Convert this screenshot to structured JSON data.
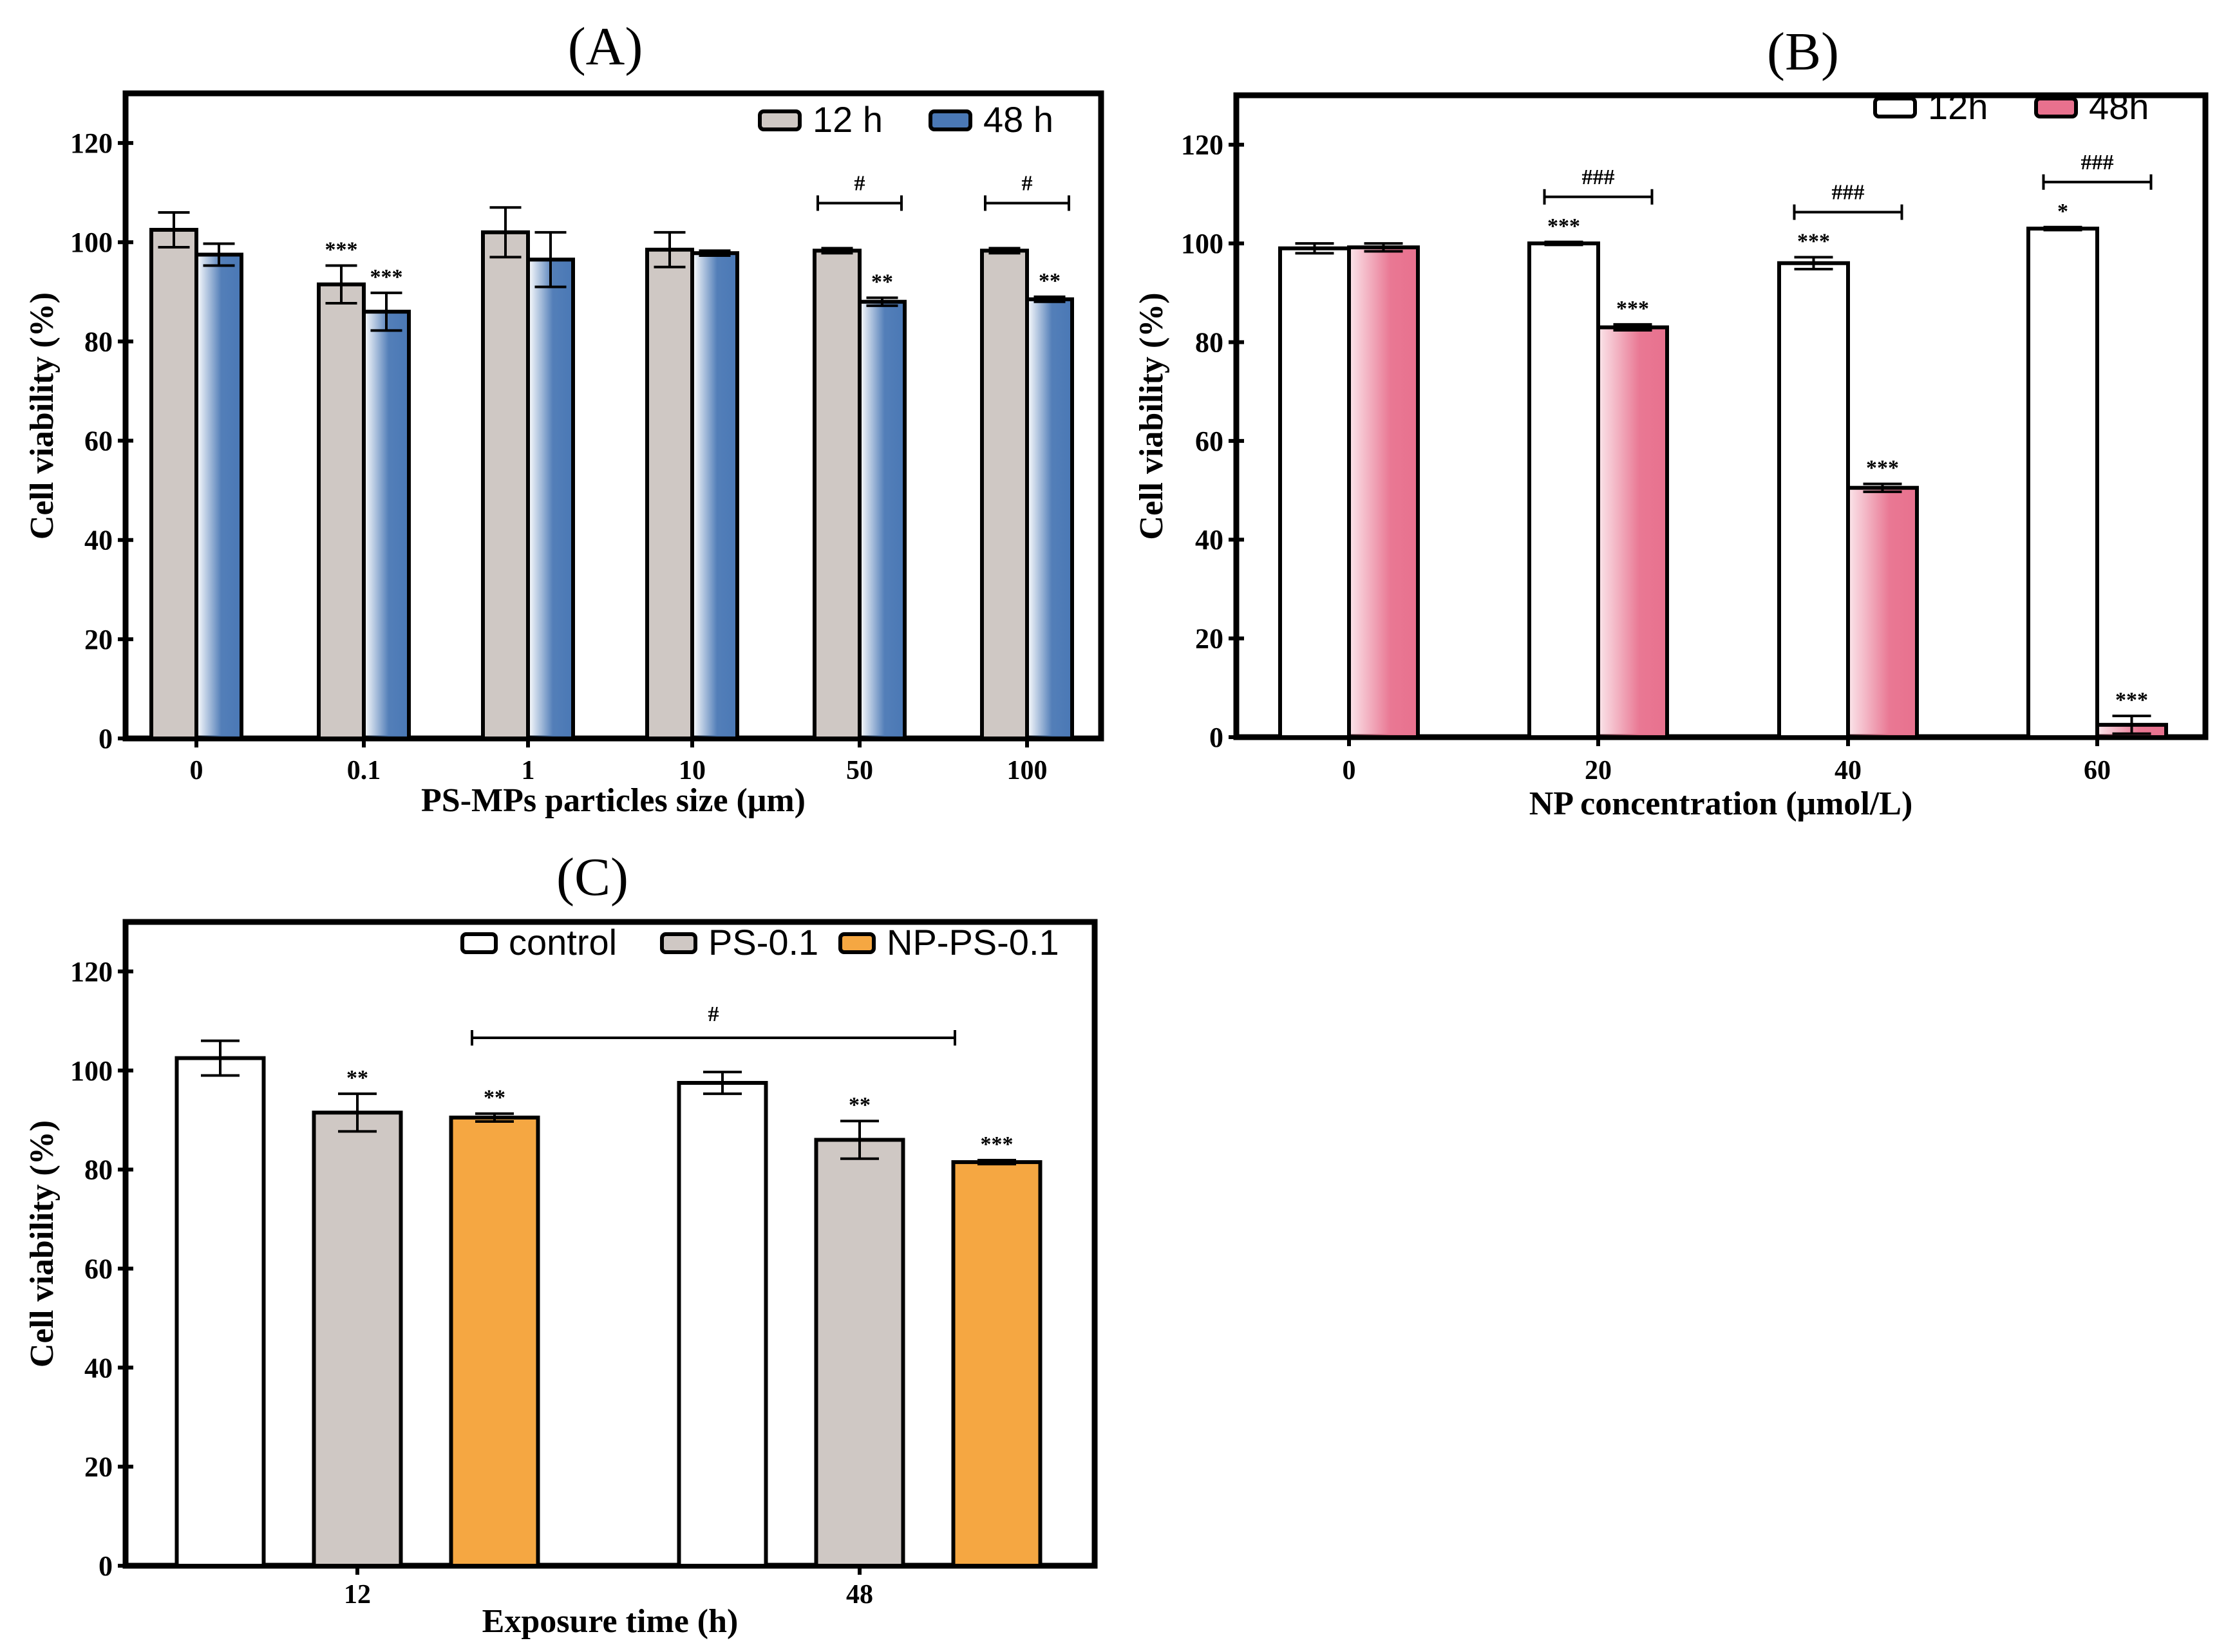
{
  "chart_data": [
    {
      "panel": "A",
      "type": "bar",
      "title": "(A)",
      "xlabel": "PS-MPs particles size (μm)",
      "ylabel": "Cell viability (%)",
      "ylim": [
        0,
        130
      ],
      "yticks": [
        "0",
        "20",
        "40",
        "60",
        "80",
        "100",
        "120"
      ],
      "categories": [
        "0",
        "0.1",
        "1",
        "10",
        "50",
        "100"
      ],
      "legend_position": "top-right",
      "series": [
        {
          "name": "12 h",
          "color": "#cfc8c4",
          "values": [
            102.5,
            91.5,
            102,
            98.5,
            98.3,
            98.3
          ],
          "errors": [
            3.5,
            3.8,
            5.0,
            3.5,
            0.5,
            0.5
          ],
          "annotations": [
            "",
            "***",
            "",
            "",
            "",
            ""
          ]
        },
        {
          "name": "48 h",
          "color": "#4a78b5",
          "values": [
            97.5,
            86,
            96.5,
            97.8,
            88,
            88.5
          ],
          "errors": [
            2.2,
            3.8,
            5.5,
            0.5,
            0.8,
            0.5
          ],
          "annotations": [
            "",
            "***",
            "",
            "",
            "**",
            "**"
          ]
        }
      ],
      "brackets": [
        {
          "category_index": 4,
          "label": "#"
        },
        {
          "category_index": 5,
          "label": "#"
        }
      ]
    },
    {
      "panel": "B",
      "type": "bar",
      "title": "(B)",
      "xlabel": "NP concentration (μmol/L)",
      "ylabel": "Cell viability (%)",
      "ylim": [
        0,
        130
      ],
      "yticks": [
        "0",
        "20",
        "40",
        "60",
        "80",
        "100",
        "120"
      ],
      "categories": [
        "0",
        "20",
        "40",
        "60"
      ],
      "legend_position": "top-right",
      "series": [
        {
          "name": "12h",
          "color": "#ffffff",
          "values": [
            99,
            100,
            96,
            103
          ],
          "errors": [
            1.0,
            0.3,
            1.2,
            0.3
          ],
          "annotations": [
            "",
            "***",
            "***",
            "*"
          ]
        },
        {
          "name": "48h",
          "color": "#e8718e",
          "values": [
            99.2,
            83,
            50.5,
            2.5
          ],
          "errors": [
            0.8,
            0.6,
            0.8,
            1.8
          ],
          "annotations": [
            "",
            "***",
            "***",
            "***"
          ]
        }
      ],
      "brackets": [
        {
          "category_index": 1,
          "label": "###"
        },
        {
          "category_index": 2,
          "label": "###"
        },
        {
          "category_index": 3,
          "label": "###"
        }
      ]
    },
    {
      "panel": "C",
      "type": "bar",
      "title": "(C)",
      "xlabel": "Exposure time (h)",
      "ylabel": "Cell viability (%)",
      "ylim": [
        0,
        130
      ],
      "yticks": [
        "0",
        "20",
        "40",
        "60",
        "80",
        "100",
        "120"
      ],
      "categories": [
        "12",
        "48"
      ],
      "legend_position": "top",
      "series": [
        {
          "name": "control",
          "color": "#ffffff",
          "values": [
            102.5,
            97.5
          ],
          "errors": [
            3.5,
            2.2
          ],
          "annotations": [
            "",
            ""
          ]
        },
        {
          "name": "PS-0.1",
          "color": "#cfc8c4",
          "values": [
            91.5,
            86
          ],
          "errors": [
            3.8,
            3.8
          ],
          "annotations": [
            "**",
            "**"
          ]
        },
        {
          "name": "NP-PS-0.1",
          "color": "#f5a742",
          "values": [
            90.5,
            81.5
          ],
          "errors": [
            0.8,
            0.4
          ],
          "annotations": [
            "**",
            "***"
          ]
        }
      ],
      "long_bracket": {
        "label": "#",
        "from_bar": "12 NP-PS-0.1",
        "to_bar": "48 NP-PS-0.1"
      }
    }
  ]
}
